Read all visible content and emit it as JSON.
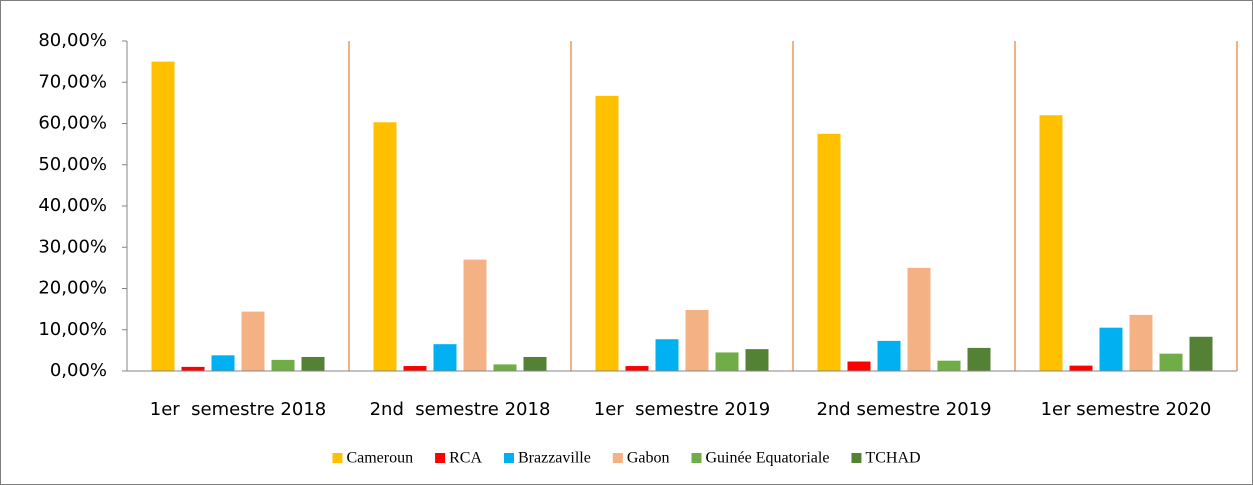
{
  "chart_data": {
    "type": "bar",
    "categories": [
      "1er  semestre 2018",
      "2nd  semestre 2018",
      "1er  semestre 2019",
      "2nd semestre 2019",
      "1er semestre 2020"
    ],
    "series": [
      {
        "name": "Cameroun",
        "color": "#ffc000",
        "values": [
          75,
          60.3,
          66.7,
          57.5,
          62
        ]
      },
      {
        "name": "RCA",
        "color": "#ff0000",
        "values": [
          1,
          1.2,
          1.2,
          2.3,
          1.3
        ]
      },
      {
        "name": "Brazzaville",
        "color": "#00b0f0",
        "values": [
          3.8,
          6.5,
          7.7,
          7.3,
          10.5
        ]
      },
      {
        "name": "Gabon",
        "color": "#f4b183",
        "values": [
          14.4,
          27,
          14.8,
          25,
          13.6
        ]
      },
      {
        "name": "Guinée Equatoriale",
        "color": "#70ad47",
        "values": [
          2.7,
          1.6,
          4.5,
          2.5,
          4.2
        ]
      },
      {
        "name": "TCHAD",
        "color": "#548235",
        "values": [
          3.4,
          3.4,
          5.3,
          5.6,
          8.3
        ]
      }
    ],
    "ylim": [
      0,
      80
    ],
    "yticks": [
      {
        "value": 0,
        "label": "0,00%"
      },
      {
        "value": 10,
        "label": "10,00%"
      },
      {
        "value": 20,
        "label": "20,00%"
      },
      {
        "value": 30,
        "label": "30,00%"
      },
      {
        "value": 40,
        "label": "40,00%"
      },
      {
        "value": 50,
        "label": "50,00%"
      },
      {
        "value": 60,
        "label": "60,00%"
      },
      {
        "value": 70,
        "label": "70,00%"
      },
      {
        "value": 80,
        "label": "80,00%"
      }
    ],
    "legend": "bottom"
  }
}
